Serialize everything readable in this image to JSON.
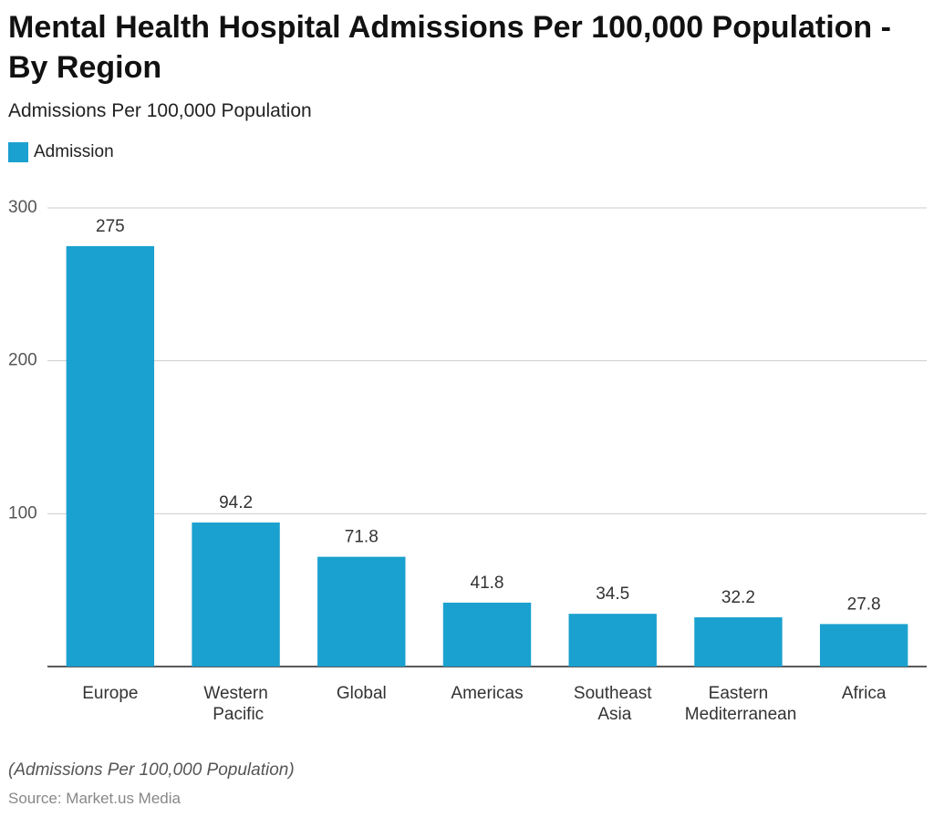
{
  "chart_data": {
    "type": "bar",
    "title": "Mental Health Hospital Admissions Per 100,000 Population - By Region",
    "subtitle": "Admissions Per 100,000 Population",
    "categories": [
      "Europe",
      "Western Pacific",
      "Global",
      "Americas",
      "Southeast Asia",
      "Eastern Mediterranean",
      "Africa"
    ],
    "series": [
      {
        "name": "Admission",
        "color": "#1ba1cf",
        "values": [
          275,
          94.2,
          71.8,
          41.8,
          34.5,
          32.2,
          27.8
        ]
      }
    ],
    "ylim": [
      0,
      300
    ],
    "yticks": [
      100,
      200,
      300
    ],
    "grid": true,
    "note": "(Admissions Per 100,000 Population)",
    "source": "Source: Market.us Media"
  }
}
